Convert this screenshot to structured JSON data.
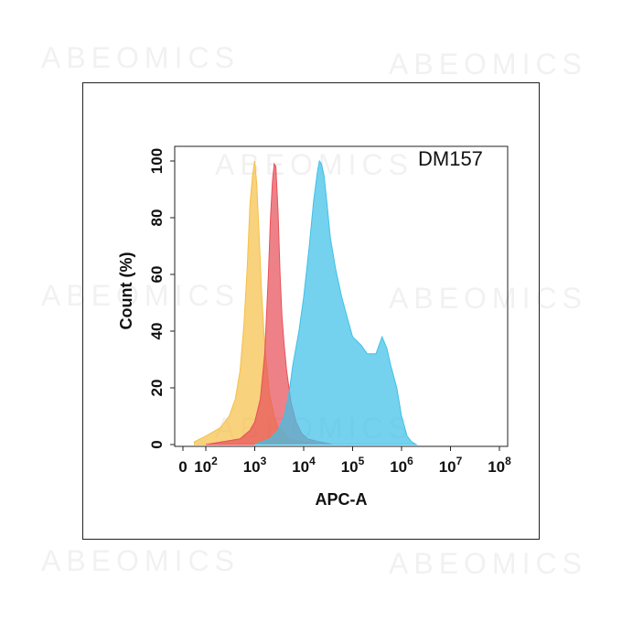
{
  "watermark": "ABEOMICS",
  "chart_data": {
    "type": "area",
    "title": "DM157",
    "xlabel": "APC-A",
    "ylabel": "Count (%)",
    "x_scale": "log",
    "xlim": [
      0,
      100000000
    ],
    "ylim": [
      0,
      100
    ],
    "x_tick_labels": [
      {
        "base": "0",
        "exp": ""
      },
      {
        "base": "10",
        "exp": "2"
      },
      {
        "base": "10",
        "exp": "3"
      },
      {
        "base": "10",
        "exp": "4"
      },
      {
        "base": "10",
        "exp": "5"
      },
      {
        "base": "10",
        "exp": "6"
      },
      {
        "base": "10",
        "exp": "7"
      },
      {
        "base": "10",
        "exp": "8"
      }
    ],
    "y_ticks": [
      0,
      20,
      40,
      60,
      80,
      100
    ],
    "grid": false,
    "legend": "none",
    "series": [
      {
        "color": "#F5C04A",
        "x": [
          10,
          100,
          200,
          300,
          400,
          500,
          600,
          700,
          800,
          900,
          1000,
          1100,
          1200,
          1400,
          1600,
          2000,
          2500,
          3000,
          4000,
          5000,
          7000,
          10000,
          15000,
          20000
        ],
        "y": [
          1,
          3,
          6,
          10,
          16,
          26,
          42,
          62,
          85,
          95,
          100,
          92,
          78,
          52,
          35,
          18,
          10,
          6,
          4,
          2,
          1.5,
          1,
          0.5,
          0
        ]
      },
      {
        "color": "#E8505A",
        "x": [
          100,
          500,
          800,
          1000,
          1300,
          1600,
          1900,
          2100,
          2300,
          2500,
          2700,
          3000,
          3300,
          3600,
          4000,
          4500,
          5500,
          7000,
          9000,
          12000,
          20000,
          40000
        ],
        "y": [
          0,
          2,
          5,
          8,
          16,
          32,
          60,
          80,
          93,
          99,
          98,
          82,
          60,
          45,
          35,
          26,
          15,
          8,
          4,
          2,
          1,
          0
        ]
      },
      {
        "color": "#3FC1E8",
        "x": [
          1000,
          2000,
          3000,
          4000,
          5000,
          6000,
          8000,
          10000,
          13000,
          16000,
          19000,
          21000,
          23000,
          26000,
          30000,
          35000,
          45000,
          60000,
          80000,
          100000,
          150000,
          200000,
          300000,
          400000,
          500000,
          600000,
          800000,
          1000000,
          1300000,
          1600000,
          2000000
        ],
        "y": [
          0,
          2,
          5,
          10,
          18,
          28,
          40,
          52,
          70,
          86,
          96,
          100,
          99,
          95,
          85,
          73,
          62,
          52,
          44,
          38,
          35,
          32,
          32,
          38,
          34,
          28,
          20,
          10,
          3,
          1,
          0
        ]
      }
    ]
  }
}
